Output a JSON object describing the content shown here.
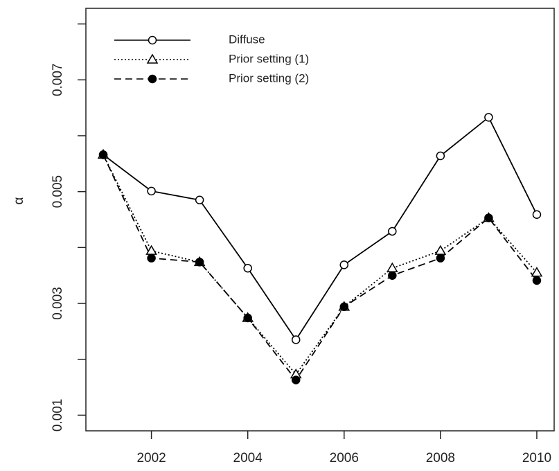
{
  "chart_data": {
    "type": "line",
    "ylabel": "α",
    "x": [
      2001,
      2002,
      2003,
      2004,
      2005,
      2006,
      2007,
      2008,
      2009,
      2010
    ],
    "series": [
      {
        "name": "Diffuse",
        "color": "#000000",
        "dash": "solid",
        "marker": "open-circle",
        "values": [
          0.00566,
          0.00501,
          0.00485,
          0.00363,
          0.00235,
          0.00369,
          0.00429,
          0.00564,
          0.00633,
          0.00459
        ]
      },
      {
        "name": "Prior setting (1)",
        "color": "#000000",
        "dash": "dotted",
        "marker": "open-triangle",
        "values": [
          0.00566,
          0.00394,
          0.00374,
          0.00274,
          0.00173,
          0.00294,
          0.00363,
          0.00394,
          0.00453,
          0.00355
        ]
      },
      {
        "name": "Prior setting (2)",
        "color": "#000000",
        "dash": "dashed",
        "marker": "filled-circle",
        "values": [
          0.00566,
          0.00381,
          0.00374,
          0.00274,
          0.00163,
          0.00294,
          0.0035,
          0.00381,
          0.00453,
          0.00341
        ]
      }
    ],
    "xlim": [
      2000.64,
      2010.36
    ],
    "xticks": [
      2002,
      2004,
      2006,
      2008,
      2010
    ],
    "ylim": [
      0.00072,
      0.00828
    ],
    "yticks": [
      0.001,
      {
        "value": 0.002,
        "label": null
      },
      0.003,
      {
        "value": 0.004,
        "label": null
      },
      0.005,
      {
        "value": 0.006,
        "label": null
      },
      0.007,
      {
        "value": 0.008,
        "label": null
      }
    ],
    "legend": "top-left",
    "grid": false
  }
}
